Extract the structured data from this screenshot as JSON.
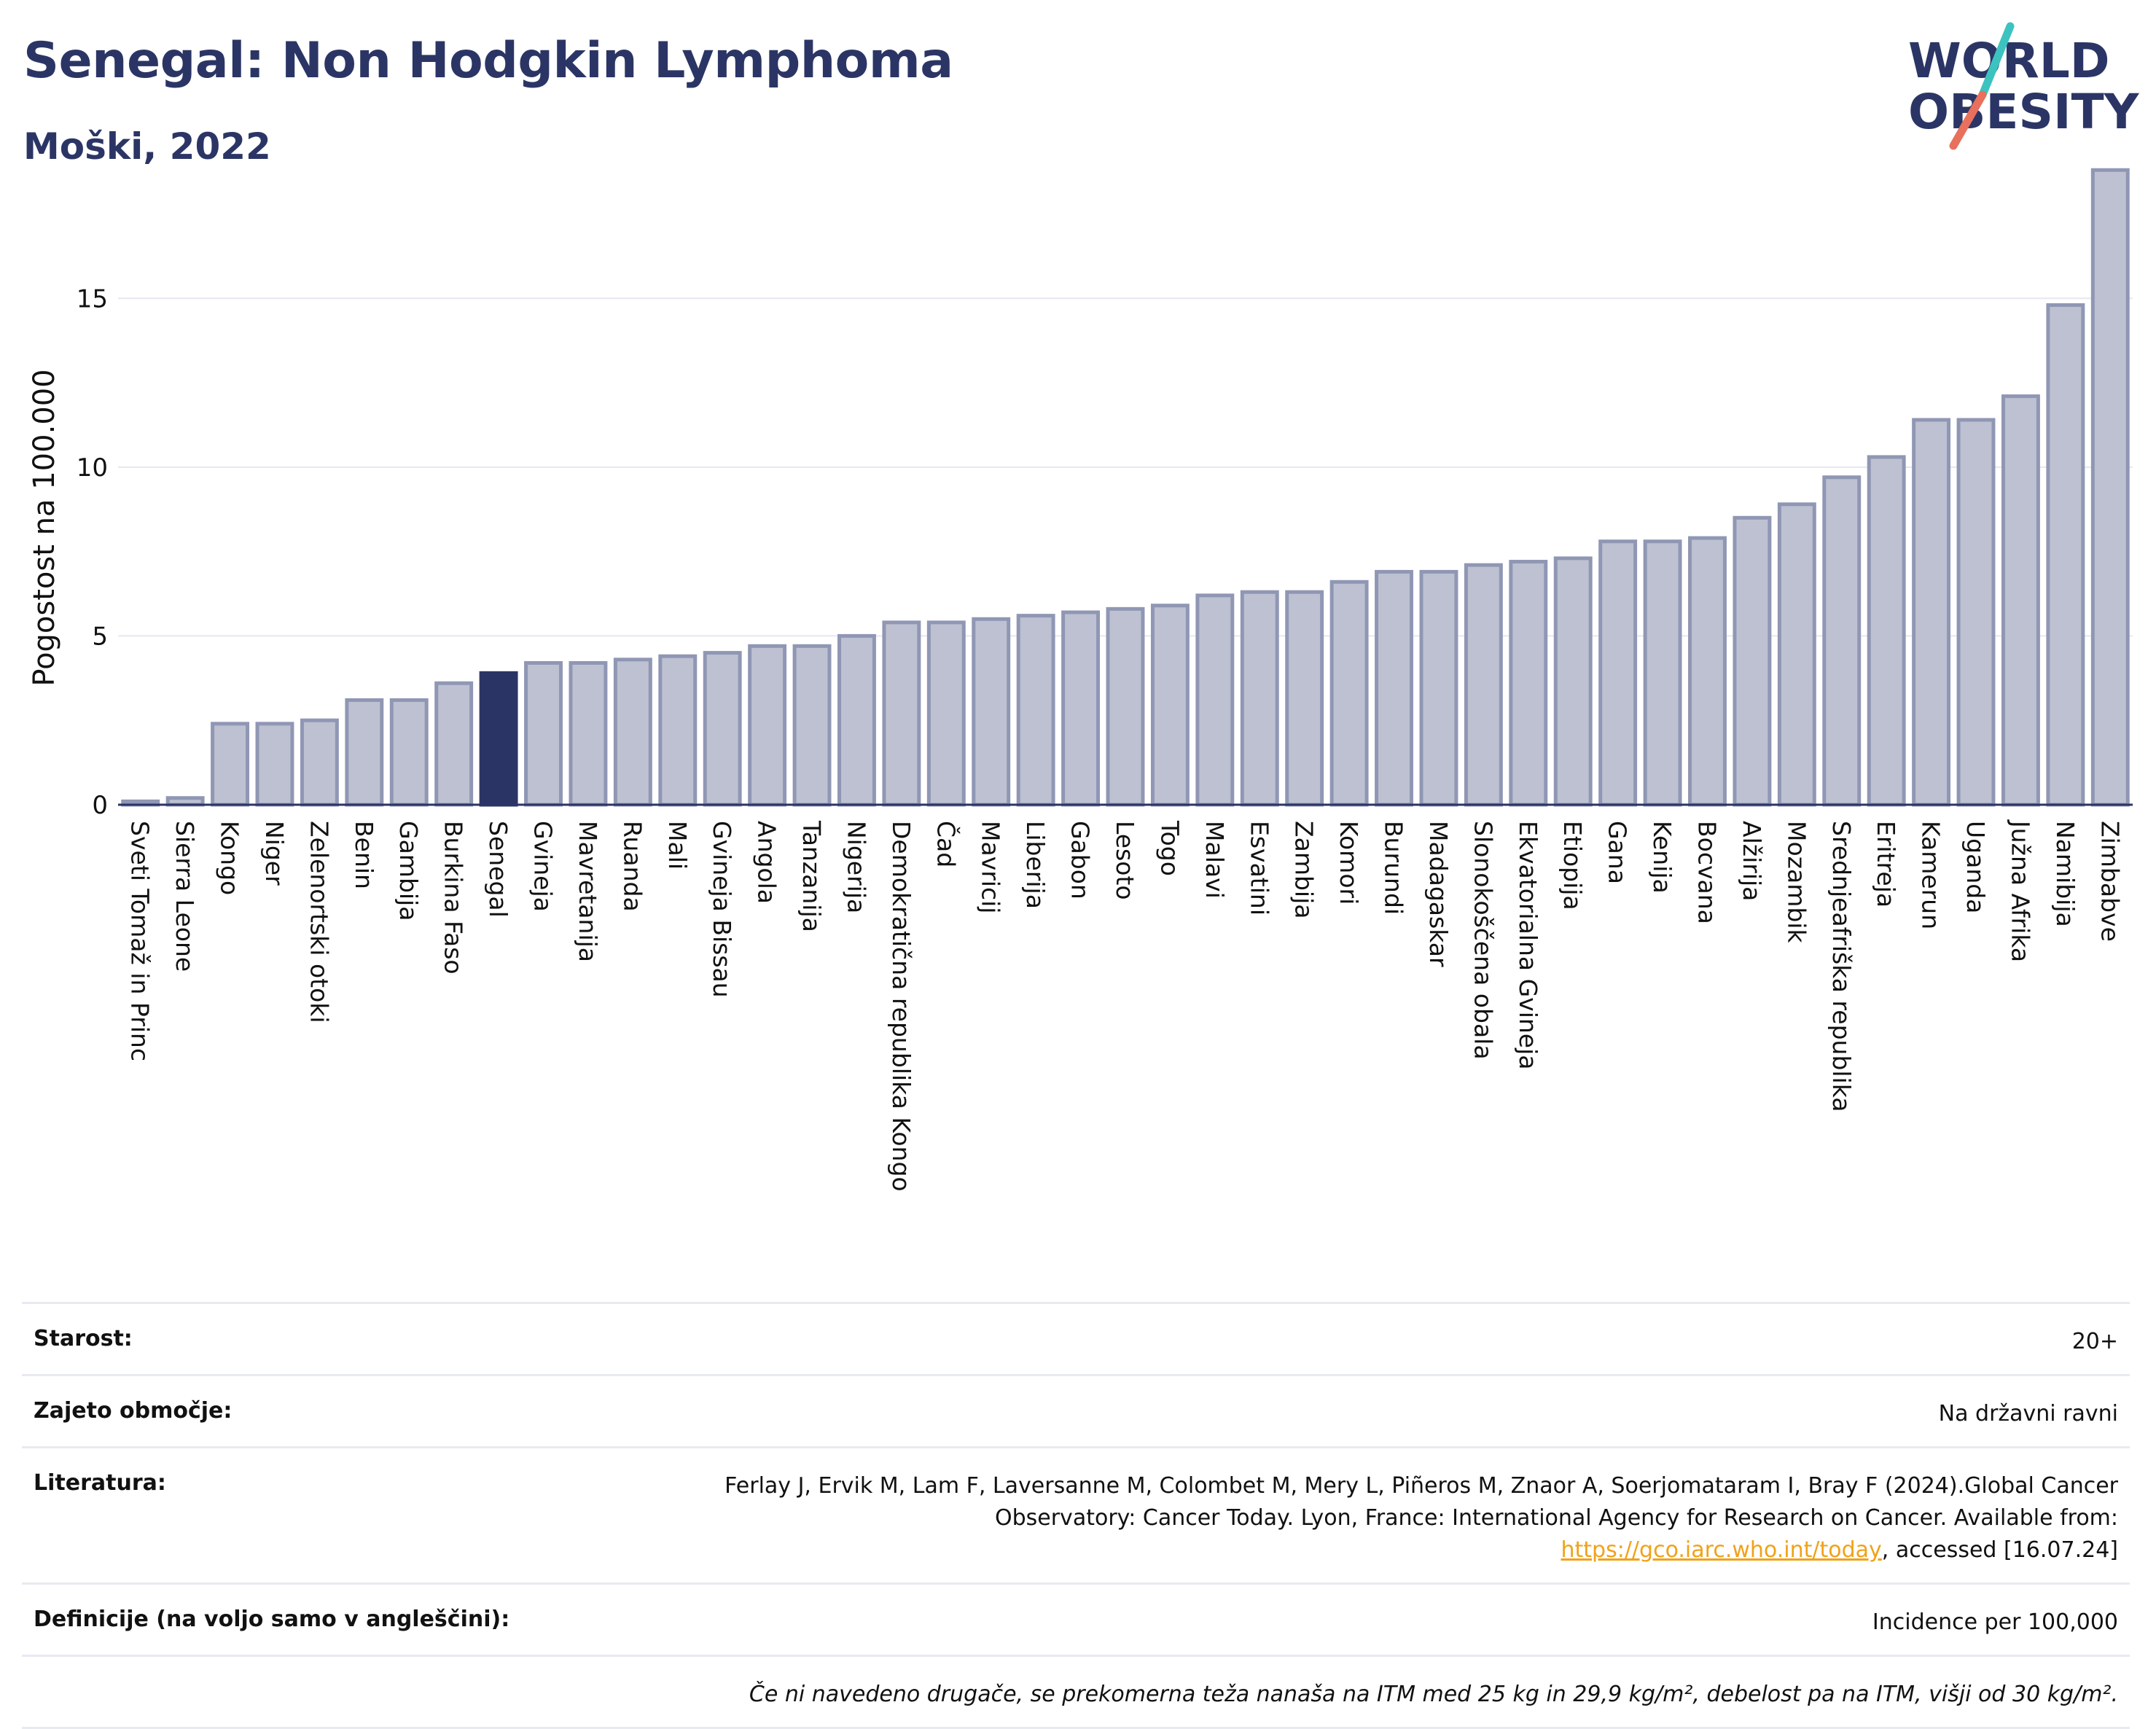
{
  "header": {
    "title": "Senegal: Non Hodgkin Lymphoma",
    "subtitle": "Moški, 2022",
    "logo_line1": "WORLD",
    "logo_line2": "OBESITY"
  },
  "colors": {
    "highlight": "#2b3565",
    "bar_fill": "#bdc1d1",
    "bar_stroke": "#9097b4",
    "title": "#2b3565",
    "logo_teal": "#3cc3c0",
    "logo_red": "#e8705c"
  },
  "chart_data": {
    "type": "bar",
    "ylabel": "Pogostost na 100.000",
    "xlabel": "",
    "ylim": [
      0,
      19
    ],
    "yticks": [
      0,
      5,
      10,
      15
    ],
    "grid": true,
    "highlight_category": "Senegal",
    "categories": [
      "Sveti Tomaž in Princ",
      "Sierra Leone",
      "Kongo",
      "Niger",
      "Zelenortski otoki",
      "Benin",
      "Gambija",
      "Burkina Faso",
      "Senegal",
      "Gvineja",
      "Mavretanija",
      "Ruanda",
      "Mali",
      "Gvineja Bissau",
      "Angola",
      "Tanzanija",
      "Nigerija",
      "Demokratična republika Kongo",
      "Čad",
      "Mavricij",
      "Liberija",
      "Gabon",
      "Lesoto",
      "Togo",
      "Malavi",
      "Esvatini",
      "Zambija",
      "Komori",
      "Burundi",
      "Madagaskar",
      "Slonokoščena obala",
      "Ekvatorialna Gvineja",
      "Etiopija",
      "Gana",
      "Kenija",
      "Bocvana",
      "Alžirija",
      "Mozambik",
      "Srednjeafriška republika",
      "Eritreja",
      "Kamerun",
      "Uganda",
      "Južna Afrika",
      "Namibija",
      "Zimbabve"
    ],
    "values": [
      0.1,
      0.2,
      2.4,
      2.4,
      2.5,
      3.1,
      3.1,
      3.6,
      3.9,
      4.2,
      4.2,
      4.3,
      4.4,
      4.5,
      4.7,
      4.7,
      5.0,
      5.4,
      5.4,
      5.5,
      5.6,
      5.7,
      5.8,
      5.9,
      6.2,
      6.3,
      6.3,
      6.6,
      6.9,
      6.9,
      7.1,
      7.2,
      7.3,
      7.8,
      7.8,
      7.9,
      8.5,
      8.9,
      9.7,
      10.3,
      11.4,
      11.4,
      12.1,
      14.8,
      18.8
    ]
  },
  "info": {
    "age_label": "Starost:",
    "age_value": "20+",
    "coverage_label": "Zajeto območje:",
    "coverage_value": "Na državni ravni",
    "literature_label": "Literatura:",
    "literature_text": "Ferlay J, Ervik M, Lam F, Laversanne M, Colombet M, Mery L, Piñeros M, Znaor A, Soerjomataram I, Bray F (2024).Global Cancer Observatory: Cancer Today. Lyon, France: International Agency for Research on Cancer. Available from: ",
    "literature_link": "https://gco.iarc.who.int/today",
    "literature_suffix": ", accessed [16.07.24]",
    "definitions_label": "Definicije (na voljo samo v angleščini):",
    "definitions_value": "Incidence per 100,000",
    "note": "Če ni navedeno drugače, se prekomerna teža nanaša na ITM med 25 kg in 29,9 kg/m², debelost pa na ITM, višji od 30 kg/m²."
  }
}
